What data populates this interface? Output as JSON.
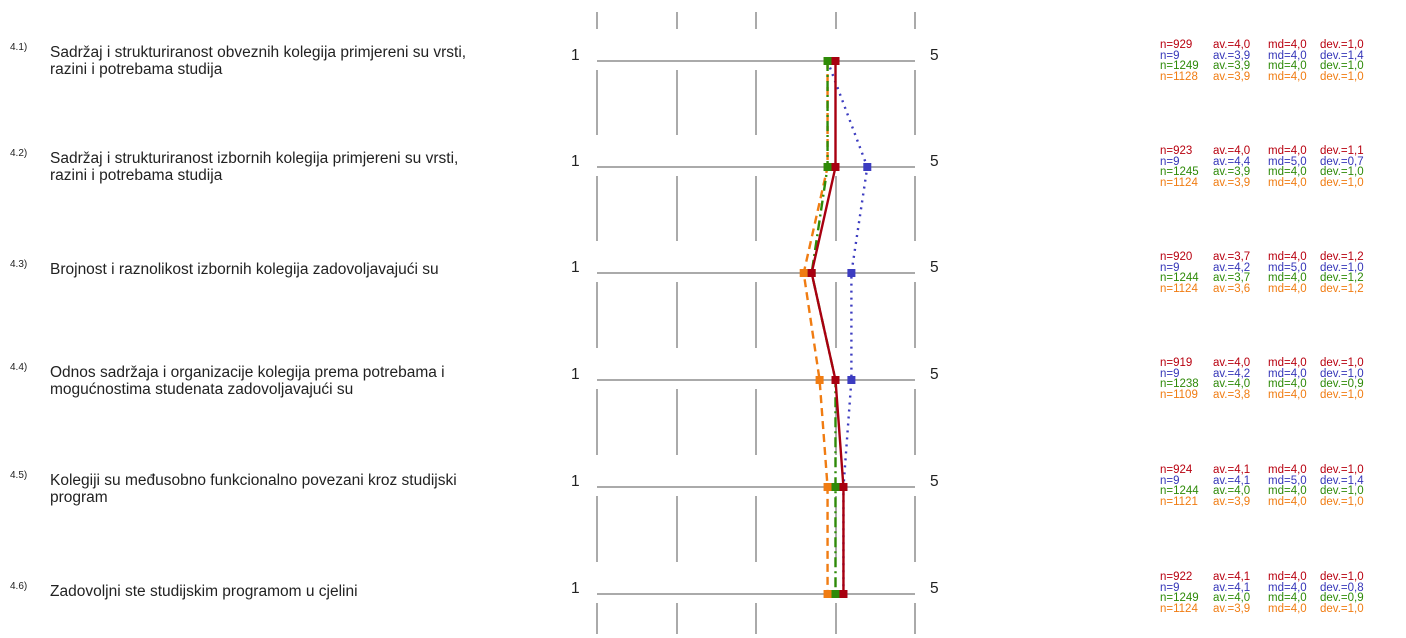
{
  "colors": {
    "series1": "#a80010",
    "series2": "#3c3cc0",
    "series3": "#2e8a08",
    "series4": "#f07c12",
    "grid": "#555555"
  },
  "chart_data": {
    "type": "line",
    "orientation": "vertical-profile",
    "scale_min_label": "1",
    "scale_max_label": "5",
    "xlim": [
      1,
      5
    ],
    "items": [
      {
        "num": "4.1)",
        "text": "Sadržaj i strukturiranost obveznih kolegija primjereni su vrsti, razini i potrebama studija",
        "stats": [
          {
            "n": "n=929",
            "av": "av.=4,0",
            "md": "md=4,0",
            "dev": "dev.=1,0"
          },
          {
            "n": "n=9",
            "av": "av.=3,9",
            "md": "md=4,0",
            "dev": "dev.=1,4"
          },
          {
            "n": "n=1249",
            "av": "av.=3,9",
            "md": "md=4,0",
            "dev": "dev.=1,0"
          },
          {
            "n": "n=1128",
            "av": "av.=3,9",
            "md": "md=4,0",
            "dev": "dev.=1,0"
          }
        ]
      },
      {
        "num": "4.2)",
        "text": "Sadržaj i strukturiranost izbornih kolegija primjereni su vrsti, razini i potrebama studija",
        "stats": [
          {
            "n": "n=923",
            "av": "av.=4,0",
            "md": "md=4,0",
            "dev": "dev.=1,1"
          },
          {
            "n": "n=9",
            "av": "av.=4,4",
            "md": "md=5,0",
            "dev": "dev.=0,7"
          },
          {
            "n": "n=1245",
            "av": "av.=3,9",
            "md": "md=4,0",
            "dev": "dev.=1,0"
          },
          {
            "n": "n=1124",
            "av": "av.=3,9",
            "md": "md=4,0",
            "dev": "dev.=1,0"
          }
        ]
      },
      {
        "num": "4.3)",
        "text": "Brojnost i raznolikost izbornih kolegija zadovoljavajući su",
        "stats": [
          {
            "n": "n=920",
            "av": "av.=3,7",
            "md": "md=4,0",
            "dev": "dev.=1,2"
          },
          {
            "n": "n=9",
            "av": "av.=4,2",
            "md": "md=5,0",
            "dev": "dev.=1,0"
          },
          {
            "n": "n=1244",
            "av": "av.=3,7",
            "md": "md=4,0",
            "dev": "dev.=1,2"
          },
          {
            "n": "n=1124",
            "av": "av.=3,6",
            "md": "md=4,0",
            "dev": "dev.=1,2"
          }
        ]
      },
      {
        "num": "4.4)",
        "text": "Odnos sadržaja i organizacije kolegija prema potrebama i mogućnostima studenata zadovoljavajući su",
        "stats": [
          {
            "n": "n=919",
            "av": "av.=4,0",
            "md": "md=4,0",
            "dev": "dev.=1,0"
          },
          {
            "n": "n=9",
            "av": "av.=4,2",
            "md": "md=4,0",
            "dev": "dev.=1,0"
          },
          {
            "n": "n=1238",
            "av": "av.=4,0",
            "md": "md=4,0",
            "dev": "dev.=0,9"
          },
          {
            "n": "n=1109",
            "av": "av.=3,8",
            "md": "md=4,0",
            "dev": "dev.=1,0"
          }
        ]
      },
      {
        "num": "4.5)",
        "text": "Kolegiji su međusobno funkcionalno povezani kroz studijski program",
        "stats": [
          {
            "n": "n=924",
            "av": "av.=4,1",
            "md": "md=4,0",
            "dev": "dev.=1,0"
          },
          {
            "n": "n=9",
            "av": "av.=4,1",
            "md": "md=5,0",
            "dev": "dev.=1,4"
          },
          {
            "n": "n=1244",
            "av": "av.=4,0",
            "md": "md=4,0",
            "dev": "dev.=1,0"
          },
          {
            "n": "n=1121",
            "av": "av.=3,9",
            "md": "md=4,0",
            "dev": "dev.=1,0"
          }
        ]
      },
      {
        "num": "4.6)",
        "text": "Zadovoljni ste studijskim programom u cjelini",
        "stats": [
          {
            "n": "n=922",
            "av": "av.=4,1",
            "md": "md=4,0",
            "dev": "dev.=1,0"
          },
          {
            "n": "n=9",
            "av": "av.=4,1",
            "md": "md=4,0",
            "dev": "dev.=0,8"
          },
          {
            "n": "n=1249",
            "av": "av.=4,0",
            "md": "md=4,0",
            "dev": "dev.=0,9"
          },
          {
            "n": "n=1124",
            "av": "av.=3,9",
            "md": "md=4,0",
            "dev": "dev.=1,0"
          }
        ]
      }
    ],
    "series": [
      {
        "values": [
          4.0,
          4.0,
          3.7,
          4.0,
          4.1,
          4.1
        ],
        "style": "solid",
        "color": "#a80010"
      },
      {
        "values": [
          3.9,
          4.4,
          4.2,
          4.2,
          4.1,
          4.1
        ],
        "style": "dotted",
        "color": "#3c3cc0"
      },
      {
        "values": [
          3.9,
          3.9,
          3.7,
          4.0,
          4.0,
          4.0
        ],
        "style": "dashdot",
        "color": "#2e8a08"
      },
      {
        "values": [
          3.9,
          3.9,
          3.6,
          3.8,
          3.9,
          3.9
        ],
        "style": "dashed",
        "color": "#f07c12"
      }
    ]
  }
}
